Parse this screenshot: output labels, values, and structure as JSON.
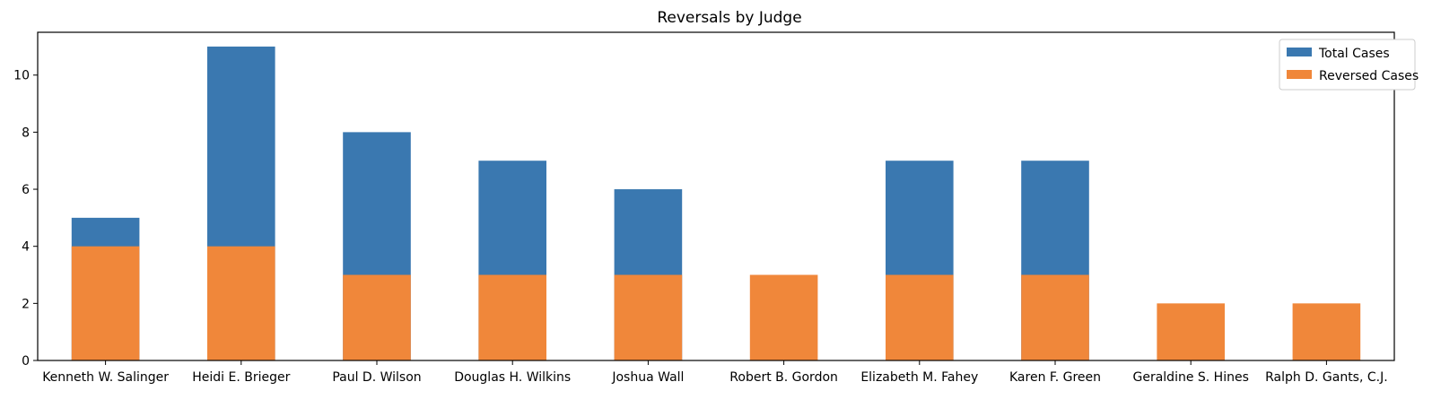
{
  "chart_data": {
    "type": "bar",
    "title": "Reversals by Judge",
    "xlabel": "",
    "ylabel": "",
    "categories": [
      "Kenneth W. Salinger",
      "Heidi E. Brieger",
      "Paul D. Wilson",
      "Douglas H. Wilkins",
      "Joshua Wall",
      "Robert B. Gordon",
      "Elizabeth M. Fahey",
      "Karen F. Green",
      "Geraldine S. Hines",
      "Ralph D. Gants, C.J."
    ],
    "series": [
      {
        "name": "Total Cases",
        "color": "#3a78b0",
        "values": [
          5,
          11,
          8,
          7,
          6,
          0,
          7,
          7,
          0,
          0
        ]
      },
      {
        "name": "Reversed Cases",
        "color": "#f0873a",
        "values": [
          4,
          4,
          3,
          3,
          3,
          3,
          3,
          3,
          2,
          2
        ]
      }
    ],
    "ylim": [
      0,
      11.5
    ],
    "yticks": [
      "0",
      "2",
      "4",
      "6",
      "8",
      "10"
    ],
    "grid": false,
    "legend_position": "top-right"
  }
}
